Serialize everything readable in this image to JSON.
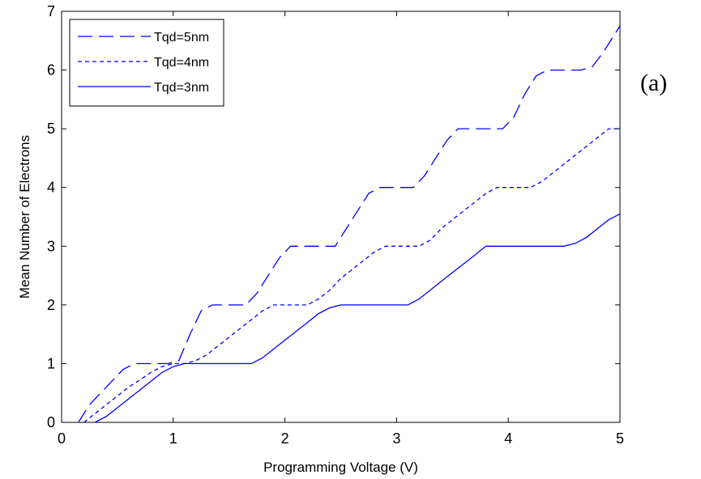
{
  "chart_data": {
    "type": "line",
    "title": "",
    "xlabel": "Programming Voltage (V)",
    "ylabel": "Mean Number of Electrons",
    "xlim": [
      0,
      5
    ],
    "ylim": [
      0,
      7
    ],
    "xticks": [
      "0",
      "1",
      "2",
      "3",
      "4",
      "5"
    ],
    "yticks": [
      "0",
      "1",
      "2",
      "3",
      "4",
      "5",
      "6",
      "7"
    ],
    "grid": false,
    "legend": "top-left",
    "panel_label": "(a)",
    "line_color": "#0000ff",
    "series": [
      {
        "name": "Tqd=5nm",
        "style": "long-dash",
        "x": [
          0.15,
          0.25,
          0.35,
          0.45,
          0.55,
          0.65,
          0.75,
          0.85,
          0.95,
          1.05,
          1.15,
          1.25,
          1.35,
          1.45,
          1.55,
          1.65,
          1.75,
          1.85,
          1.95,
          2.05,
          2.15,
          2.25,
          2.35,
          2.45,
          2.55,
          2.65,
          2.75,
          2.85,
          2.95,
          3.05,
          3.15,
          3.25,
          3.35,
          3.45,
          3.55,
          3.65,
          3.75,
          3.85,
          3.95,
          4.05,
          4.15,
          4.25,
          4.35,
          4.45,
          4.55,
          4.65,
          4.75,
          4.85,
          5.0
        ],
        "y": [
          0.0,
          0.3,
          0.5,
          0.7,
          0.9,
          1.0,
          1.0,
          1.0,
          1.0,
          1.05,
          1.5,
          1.9,
          2.0,
          2.0,
          2.0,
          2.0,
          2.2,
          2.5,
          2.8,
          3.0,
          3.0,
          3.0,
          3.0,
          3.0,
          3.3,
          3.6,
          3.9,
          4.0,
          4.0,
          4.0,
          4.0,
          4.2,
          4.5,
          4.8,
          5.0,
          5.0,
          5.0,
          5.0,
          5.0,
          5.2,
          5.6,
          5.9,
          6.0,
          6.0,
          6.0,
          6.0,
          6.05,
          6.3,
          6.75
        ]
      },
      {
        "name": "Tqd=4nm",
        "style": "short-dash",
        "x": [
          0.2,
          0.3,
          0.4,
          0.5,
          0.6,
          0.7,
          0.8,
          0.9,
          1.0,
          1.1,
          1.2,
          1.3,
          1.4,
          1.5,
          1.6,
          1.7,
          1.8,
          1.9,
          2.0,
          2.1,
          2.2,
          2.3,
          2.4,
          2.5,
          2.6,
          2.7,
          2.8,
          2.9,
          3.0,
          3.1,
          3.2,
          3.3,
          3.4,
          3.5,
          3.6,
          3.7,
          3.8,
          3.9,
          4.0,
          4.1,
          4.2,
          4.3,
          4.4,
          4.5,
          4.6,
          4.7,
          4.8,
          4.9,
          5.0
        ],
        "y": [
          0.0,
          0.15,
          0.3,
          0.45,
          0.6,
          0.72,
          0.85,
          0.95,
          1.0,
          1.0,
          1.05,
          1.15,
          1.3,
          1.45,
          1.6,
          1.75,
          1.9,
          2.0,
          2.0,
          2.0,
          2.0,
          2.1,
          2.25,
          2.45,
          2.6,
          2.75,
          2.9,
          3.0,
          3.0,
          3.0,
          3.0,
          3.1,
          3.3,
          3.45,
          3.6,
          3.75,
          3.9,
          4.0,
          4.0,
          4.0,
          4.0,
          4.1,
          4.25,
          4.4,
          4.55,
          4.7,
          4.85,
          5.0,
          5.0
        ]
      },
      {
        "name": "Tqd=3nm",
        "style": "solid",
        "x": [
          0.3,
          0.4,
          0.5,
          0.6,
          0.7,
          0.8,
          0.9,
          1.0,
          1.1,
          1.2,
          1.3,
          1.4,
          1.5,
          1.6,
          1.7,
          1.8,
          1.9,
          2.0,
          2.1,
          2.2,
          2.3,
          2.4,
          2.5,
          2.6,
          2.7,
          2.8,
          2.9,
          3.0,
          3.1,
          3.2,
          3.3,
          3.4,
          3.5,
          3.6,
          3.7,
          3.8,
          3.9,
          4.0,
          4.1,
          4.2,
          4.3,
          4.4,
          4.5,
          4.6,
          4.7,
          4.8,
          4.9,
          5.0
        ],
        "y": [
          0.0,
          0.1,
          0.25,
          0.4,
          0.55,
          0.7,
          0.85,
          0.95,
          1.0,
          1.0,
          1.0,
          1.0,
          1.0,
          1.0,
          1.0,
          1.1,
          1.25,
          1.4,
          1.55,
          1.7,
          1.85,
          1.95,
          2.0,
          2.0,
          2.0,
          2.0,
          2.0,
          2.0,
          2.0,
          2.1,
          2.25,
          2.4,
          2.55,
          2.7,
          2.85,
          3.0,
          3.0,
          3.0,
          3.0,
          3.0,
          3.0,
          3.0,
          3.0,
          3.05,
          3.15,
          3.3,
          3.45,
          3.55
        ]
      }
    ]
  }
}
